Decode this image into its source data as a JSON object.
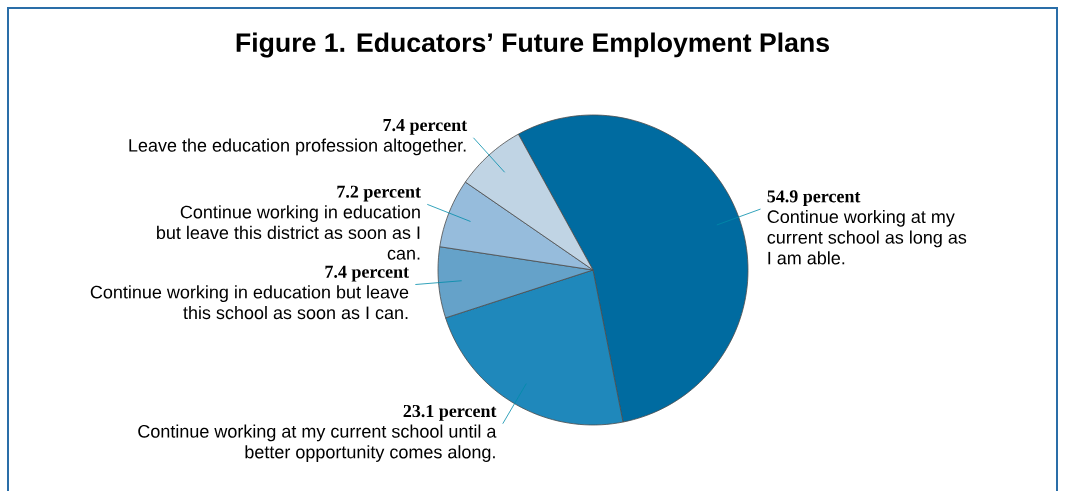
{
  "chart_data": {
    "type": "pie",
    "title": "Figure 1.  Educators’ Future Employment Plans",
    "categories": [
      "Continue working at my current school as long as I am able.",
      "Continue working at my current school until a better opportunity comes along.",
      "Continue working in education but leave this school as soon as I can.",
      "Continue working in education but leave this district as soon as I can.",
      "Leave the education profession altogether."
    ],
    "values": [
      54.9,
      23.1,
      7.4,
      7.2,
      7.4
    ],
    "value_labels": [
      "54.9 percent",
      "23.1 percent",
      "7.4 percent",
      "7.2 percent",
      "7.4 percent"
    ],
    "colors": [
      "#006ba0",
      "#1f88bb",
      "#65a2c9",
      "#96bcdc",
      "#c0d4e4"
    ]
  }
}
